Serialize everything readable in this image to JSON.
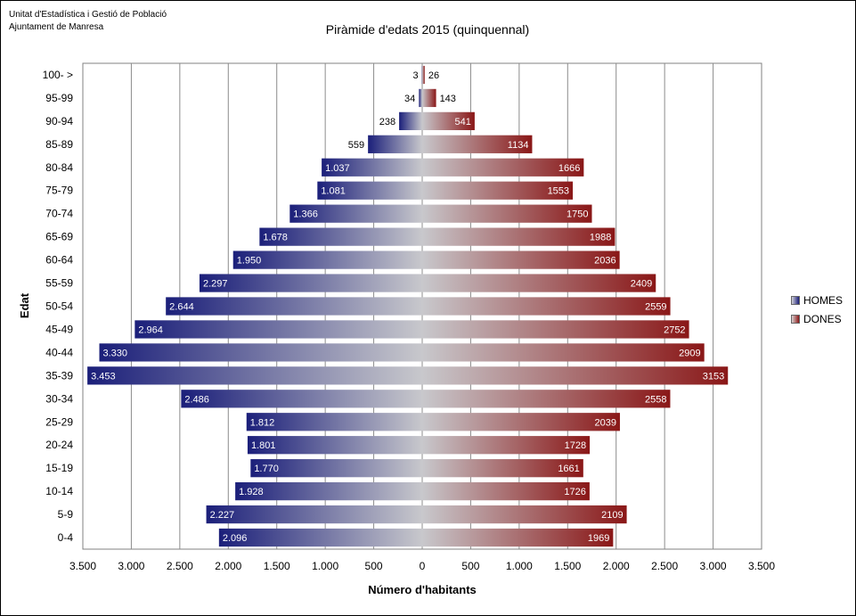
{
  "header": {
    "org_line1": "Unitat d'Estadística i Gestió de Població",
    "org_line2": "Ajuntament de Manresa"
  },
  "chart_data": {
    "type": "bar",
    "orientation": "horizontal-population-pyramid",
    "title": "Piràmide d'edats 2015 (quinquennal)",
    "xlabel": "Número d'habitants",
    "ylabel": "Edat",
    "xlim": [
      -3500,
      3500
    ],
    "x_ticks": [
      "3.500",
      "3.000",
      "2.500",
      "2.000",
      "1.500",
      "1.000",
      "500",
      "0",
      "500",
      "1.000",
      "1.500",
      "2.000",
      "2.500",
      "3.000",
      "3.500"
    ],
    "grid": true,
    "legend_position": "right",
    "categories": [
      "100- >",
      "95-99",
      "90-94",
      "85-89",
      "80-84",
      "75-79",
      "70-74",
      "65-69",
      "60-64",
      "55-59",
      "50-54",
      "45-49",
      "40-44",
      "35-39",
      "30-34",
      "25-29",
      "20-24",
      "15-19",
      "10-14",
      "5-9",
      "0-4"
    ],
    "series": [
      {
        "name": "HOMES",
        "color": "#1b1f7a",
        "values": [
          3,
          34,
          238,
          559,
          1037,
          1081,
          1366,
          1678,
          1950,
          2297,
          2644,
          2964,
          3330,
          3453,
          2486,
          1812,
          1801,
          1770,
          1928,
          2227,
          2096
        ],
        "labels": [
          "3",
          "34",
          "238",
          "559",
          "1.037",
          "1.081",
          "1.366",
          "1.678",
          "1.950",
          "2.297",
          "2.644",
          "2.964",
          "3.330",
          "3.453",
          "2.486",
          "1.812",
          "1.801",
          "1.770",
          "1.928",
          "2.227",
          "2.096"
        ]
      },
      {
        "name": "DONES",
        "color": "#8a1717",
        "values": [
          26,
          143,
          541,
          1134,
          1666,
          1553,
          1750,
          1988,
          2036,
          2409,
          2559,
          2752,
          2909,
          3153,
          2558,
          2039,
          1728,
          1661,
          1726,
          2109,
          1969
        ],
        "labels": [
          "26",
          "143",
          "541",
          "1134",
          "1666",
          "1553",
          "1750",
          "1988",
          "2036",
          "2409",
          "2559",
          "2752",
          "2909",
          "3153",
          "2558",
          "2039",
          "1728",
          "1661",
          "1726",
          "2109",
          "1969"
        ]
      }
    ]
  }
}
